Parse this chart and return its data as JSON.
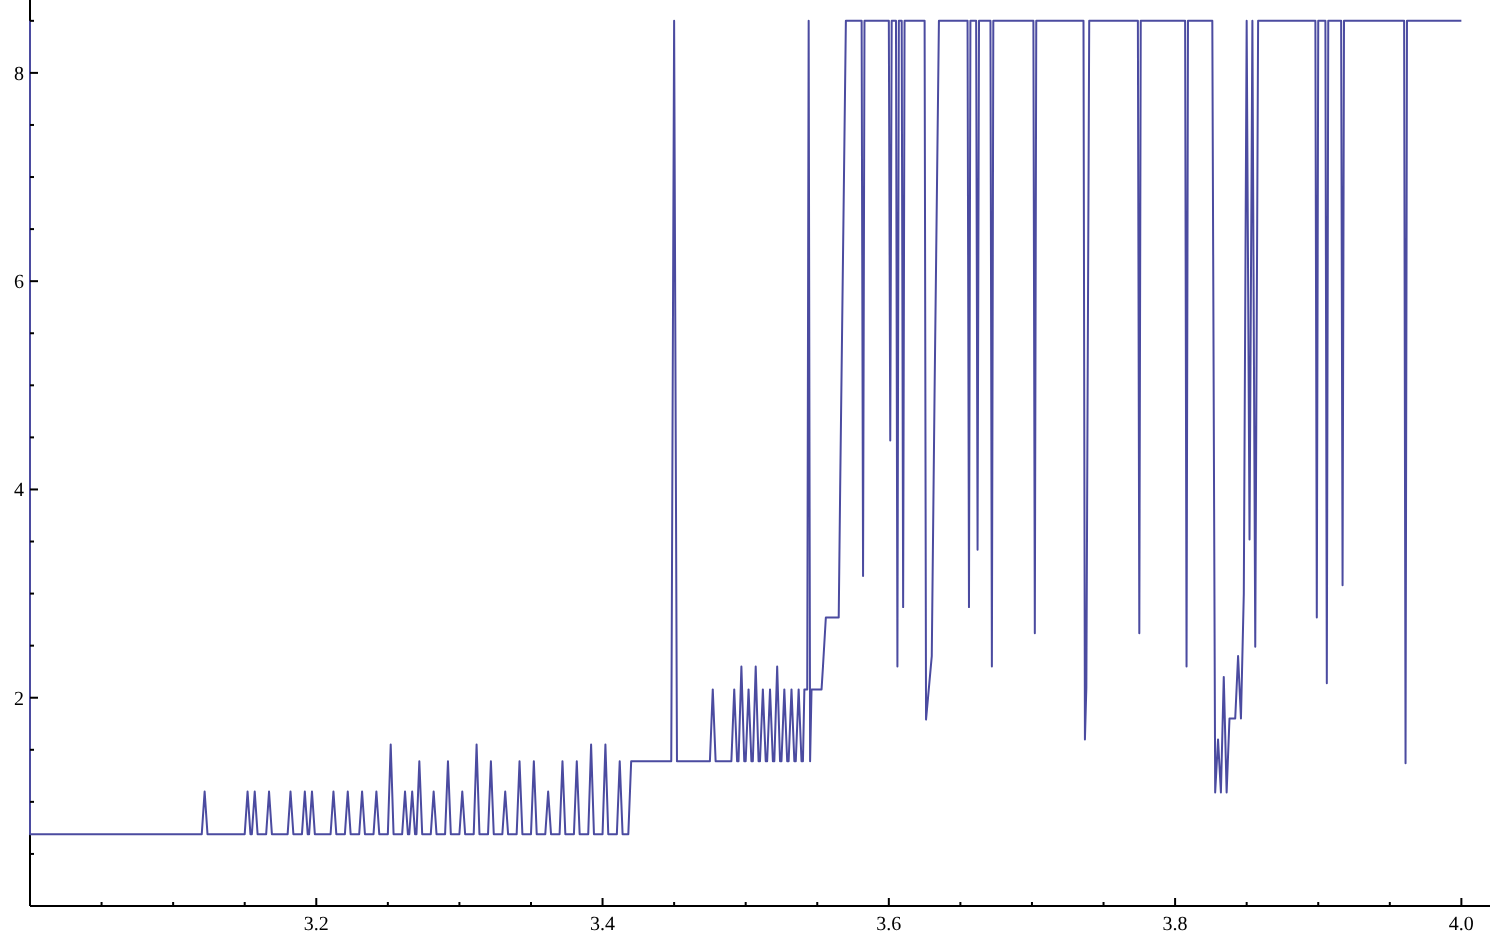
{
  "chart_data": {
    "type": "line",
    "x": [
      3.0,
      3.0,
      3.12,
      3.122,
      3.124,
      3.15,
      3.152,
      3.154,
      3.155,
      3.157,
      3.159,
      3.165,
      3.167,
      3.169,
      3.18,
      3.182,
      3.184,
      3.19,
      3.192,
      3.194,
      3.195,
      3.197,
      3.199,
      3.21,
      3.212,
      3.214,
      3.22,
      3.222,
      3.224,
      3.23,
      3.232,
      3.234,
      3.24,
      3.242,
      3.244,
      3.25,
      3.252,
      3.254,
      3.26,
      3.262,
      3.264,
      3.265,
      3.267,
      3.269,
      3.27,
      3.272,
      3.274,
      3.28,
      3.282,
      3.284,
      3.29,
      3.292,
      3.294,
      3.3,
      3.302,
      3.304,
      3.31,
      3.312,
      3.314,
      3.32,
      3.322,
      3.324,
      3.33,
      3.332,
      3.334,
      3.34,
      3.342,
      3.344,
      3.35,
      3.352,
      3.354,
      3.36,
      3.362,
      3.364,
      3.37,
      3.372,
      3.374,
      3.38,
      3.382,
      3.384,
      3.39,
      3.392,
      3.394,
      3.4,
      3.402,
      3.404,
      3.41,
      3.412,
      3.414,
      3.418,
      3.42,
      3.448,
      3.45,
      3.452,
      3.475,
      3.477,
      3.479,
      3.49,
      3.492,
      3.494,
      3.495,
      3.497,
      3.499,
      3.5,
      3.502,
      3.504,
      3.505,
      3.507,
      3.509,
      3.51,
      3.512,
      3.514,
      3.515,
      3.517,
      3.519,
      3.52,
      3.522,
      3.524,
      3.525,
      3.527,
      3.529,
      3.53,
      3.532,
      3.534,
      3.535,
      3.537,
      3.539,
      3.54,
      3.541,
      3.543,
      3.544,
      3.545,
      3.546,
      3.553,
      3.554,
      3.556,
      3.565,
      3.566,
      3.57,
      3.581,
      3.582,
      3.583,
      3.6,
      3.601,
      3.602,
      3.605,
      3.606,
      3.607,
      3.609,
      3.61,
      3.611,
      3.625,
      3.626,
      3.63,
      3.632,
      3.635,
      3.655,
      3.656,
      3.657,
      3.661,
      3.662,
      3.663,
      3.671,
      3.672,
      3.673,
      3.701,
      3.702,
      3.703,
      3.736,
      3.737,
      3.738,
      3.74,
      3.774,
      3.775,
      3.776,
      3.807,
      3.808,
      3.809,
      3.826,
      3.828,
      3.83,
      3.832,
      3.834,
      3.836,
      3.838,
      3.842,
      3.844,
      3.846,
      3.848,
      3.85,
      3.852,
      3.854,
      3.856,
      3.858,
      3.898,
      3.899,
      3.9,
      3.905,
      3.906,
      3.907,
      3.916,
      3.917,
      3.918,
      3.96,
      3.961,
      3.962,
      4.0
    ],
    "series": [
      {
        "color": "#4b4ba0",
        "values": [
          8.5,
          0.69,
          0.69,
          1.1,
          0.69,
          0.69,
          1.1,
          0.69,
          0.69,
          1.1,
          0.69,
          0.69,
          1.1,
          0.69,
          0.69,
          1.1,
          0.69,
          0.69,
          1.1,
          0.69,
          0.69,
          1.1,
          0.69,
          0.69,
          1.1,
          0.69,
          0.69,
          1.1,
          0.69,
          0.69,
          1.1,
          0.69,
          0.69,
          1.1,
          0.69,
          0.69,
          1.55,
          0.69,
          0.69,
          1.1,
          0.69,
          0.69,
          1.1,
          0.69,
          0.69,
          1.39,
          0.69,
          0.69,
          1.1,
          0.69,
          0.69,
          1.39,
          0.69,
          0.69,
          1.1,
          0.69,
          0.69,
          1.55,
          0.69,
          0.69,
          1.39,
          0.69,
          0.69,
          1.1,
          0.69,
          0.69,
          1.39,
          0.69,
          0.69,
          1.39,
          0.69,
          0.69,
          1.1,
          0.69,
          0.69,
          1.39,
          0.69,
          0.69,
          1.39,
          0.69,
          0.69,
          1.55,
          0.69,
          0.69,
          1.55,
          0.69,
          0.69,
          1.39,
          0.69,
          0.69,
          1.39,
          1.39,
          8.5,
          1.39,
          1.39,
          2.08,
          1.39,
          1.39,
          2.08,
          1.39,
          1.39,
          2.3,
          1.39,
          1.39,
          2.08,
          1.39,
          1.39,
          2.3,
          1.39,
          1.39,
          2.08,
          1.39,
          1.39,
          2.08,
          1.39,
          1.39,
          2.3,
          1.39,
          1.39,
          2.08,
          1.39,
          1.39,
          2.08,
          1.39,
          1.39,
          2.08,
          1.39,
          1.39,
          2.08,
          2.08,
          8.5,
          1.39,
          2.08,
          2.08,
          2.3,
          2.77,
          2.77,
          4.0,
          8.5,
          8.5,
          3.17,
          8.5,
          8.5,
          4.47,
          8.5,
          8.5,
          2.3,
          8.5,
          8.5,
          2.87,
          8.5,
          8.5,
          1.79,
          2.4,
          4.98,
          8.5,
          8.5,
          2.87,
          8.5,
          8.5,
          3.42,
          8.5,
          8.5,
          2.3,
          8.5,
          8.5,
          2.62,
          8.5,
          8.5,
          1.6,
          2.1,
          8.5,
          8.5,
          2.62,
          8.5,
          8.5,
          2.3,
          8.5,
          8.5,
          1.09,
          1.6,
          1.09,
          2.2,
          1.09,
          1.8,
          1.8,
          2.4,
          1.8,
          3.0,
          8.5,
          3.52,
          8.5,
          2.49,
          8.5,
          8.5,
          2.77,
          8.5,
          8.5,
          2.14,
          8.5,
          8.5,
          3.08,
          8.5,
          8.5,
          1.37,
          8.5,
          8.5
        ]
      }
    ],
    "xlim": [
      3.0,
      4.02
    ],
    "xticks": [
      {
        "value": 3.05,
        "label": null
      },
      {
        "value": 3.1,
        "label": null
      },
      {
        "value": 3.15,
        "label": null
      },
      {
        "value": 3.2,
        "label": "3.2"
      },
      {
        "value": 3.25,
        "label": null
      },
      {
        "value": 3.3,
        "label": null
      },
      {
        "value": 3.35,
        "label": null
      },
      {
        "value": 3.4,
        "label": "3.4"
      },
      {
        "value": 3.45,
        "label": null
      },
      {
        "value": 3.5,
        "label": null
      },
      {
        "value": 3.55,
        "label": null
      },
      {
        "value": 3.6,
        "label": "3.6"
      },
      {
        "value": 3.65,
        "label": null
      },
      {
        "value": 3.7,
        "label": null
      },
      {
        "value": 3.75,
        "label": null
      },
      {
        "value": 3.8,
        "label": "3.8"
      },
      {
        "value": 3.85,
        "label": null
      },
      {
        "value": 3.9,
        "label": null
      },
      {
        "value": 3.95,
        "label": null
      },
      {
        "value": 4.0,
        "label": "4.0"
      }
    ],
    "ylim": [
      0,
      8.7
    ],
    "yticks": [
      {
        "value": 0.5,
        "label": null
      },
      {
        "value": 1,
        "label": null
      },
      {
        "value": 1.5,
        "label": null
      },
      2,
      {
        "value": 2.5,
        "label": null
      },
      {
        "value": 3,
        "label": null
      },
      {
        "value": 3.5,
        "label": null
      },
      4,
      {
        "value": 4.5,
        "label": null
      },
      {
        "value": 5,
        "label": null
      },
      {
        "value": 5.5,
        "label": null
      },
      6,
      {
        "value": 6.5,
        "label": null
      },
      {
        "value": 7,
        "label": null
      },
      {
        "value": 7.5,
        "label": null
      },
      8,
      {
        "value": 8.5,
        "label": null
      }
    ],
    "marker": "none",
    "line_style": "solid"
  }
}
